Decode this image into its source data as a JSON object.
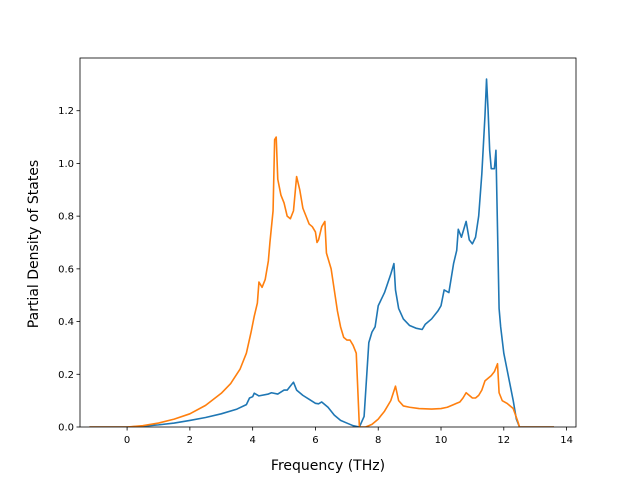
{
  "chart_data": {
    "type": "line",
    "title": "",
    "xlabel": "Frequency (THz)",
    "ylabel": "Partial Density of States",
    "xlim": [
      -1.5,
      14.3
    ],
    "ylim": [
      0.0,
      1.4
    ],
    "xticks": [
      0,
      2,
      4,
      6,
      8,
      10,
      12,
      14
    ],
    "yticks": [
      0.0,
      0.2,
      0.4,
      0.6,
      0.8,
      1.0,
      1.2
    ],
    "xtick_labels": [
      "0",
      "2",
      "4",
      "6",
      "8",
      "10",
      "12",
      "14"
    ],
    "ytick_labels": [
      "0.0",
      "0.2",
      "0.4",
      "0.6",
      "0.8",
      "1.0",
      "1.2"
    ],
    "grid": false,
    "legend": "none",
    "series": [
      {
        "color": "#1f77b4",
        "points": [
          [
            -1.2,
            0.0
          ],
          [
            0.0,
            0.0
          ],
          [
            0.5,
            0.003
          ],
          [
            1.0,
            0.008
          ],
          [
            1.5,
            0.015
          ],
          [
            2.0,
            0.025
          ],
          [
            2.5,
            0.036
          ],
          [
            3.0,
            0.05
          ],
          [
            3.5,
            0.068
          ],
          [
            3.8,
            0.085
          ],
          [
            3.9,
            0.11
          ],
          [
            4.0,
            0.115
          ],
          [
            4.05,
            0.128
          ],
          [
            4.2,
            0.118
          ],
          [
            4.5,
            0.125
          ],
          [
            4.6,
            0.13
          ],
          [
            4.8,
            0.125
          ],
          [
            5.0,
            0.14
          ],
          [
            5.1,
            0.14
          ],
          [
            5.2,
            0.155
          ],
          [
            5.3,
            0.17
          ],
          [
            5.4,
            0.14
          ],
          [
            5.6,
            0.12
          ],
          [
            5.8,
            0.105
          ],
          [
            6.0,
            0.09
          ],
          [
            6.1,
            0.088
          ],
          [
            6.2,
            0.095
          ],
          [
            6.4,
            0.075
          ],
          [
            6.6,
            0.045
          ],
          [
            6.8,
            0.025
          ],
          [
            7.0,
            0.015
          ],
          [
            7.2,
            0.005
          ],
          [
            7.4,
            0.0
          ],
          [
            7.55,
            0.04
          ],
          [
            7.7,
            0.32
          ],
          [
            7.8,
            0.36
          ],
          [
            7.9,
            0.38
          ],
          [
            8.0,
            0.46
          ],
          [
            8.2,
            0.51
          ],
          [
            8.4,
            0.58
          ],
          [
            8.5,
            0.62
          ],
          [
            8.55,
            0.52
          ],
          [
            8.65,
            0.45
          ],
          [
            8.8,
            0.41
          ],
          [
            9.0,
            0.385
          ],
          [
            9.2,
            0.375
          ],
          [
            9.4,
            0.37
          ],
          [
            9.5,
            0.39
          ],
          [
            9.7,
            0.41
          ],
          [
            9.9,
            0.44
          ],
          [
            10.0,
            0.46
          ],
          [
            10.1,
            0.52
          ],
          [
            10.25,
            0.51
          ],
          [
            10.4,
            0.62
          ],
          [
            10.5,
            0.67
          ],
          [
            10.55,
            0.75
          ],
          [
            10.65,
            0.72
          ],
          [
            10.8,
            0.78
          ],
          [
            10.9,
            0.71
          ],
          [
            11.0,
            0.695
          ],
          [
            11.1,
            0.72
          ],
          [
            11.2,
            0.8
          ],
          [
            11.3,
            0.96
          ],
          [
            11.4,
            1.18
          ],
          [
            11.45,
            1.32
          ],
          [
            11.5,
            1.2
          ],
          [
            11.55,
            1.05
          ],
          [
            11.6,
            0.98
          ],
          [
            11.7,
            0.98
          ],
          [
            11.75,
            1.05
          ],
          [
            11.8,
            0.75
          ],
          [
            11.85,
            0.45
          ],
          [
            11.9,
            0.38
          ],
          [
            12.0,
            0.28
          ],
          [
            12.1,
            0.22
          ],
          [
            12.2,
            0.16
          ],
          [
            12.3,
            0.1
          ],
          [
            12.4,
            0.03
          ],
          [
            12.5,
            0.0
          ],
          [
            13.6,
            0.0
          ]
        ]
      },
      {
        "color": "#ff7f0e",
        "points": [
          [
            -1.2,
            0.0
          ],
          [
            0.0,
            0.0
          ],
          [
            0.5,
            0.005
          ],
          [
            1.0,
            0.015
          ],
          [
            1.5,
            0.03
          ],
          [
            2.0,
            0.05
          ],
          [
            2.5,
            0.082
          ],
          [
            3.0,
            0.128
          ],
          [
            3.3,
            0.165
          ],
          [
            3.6,
            0.22
          ],
          [
            3.8,
            0.28
          ],
          [
            3.95,
            0.36
          ],
          [
            4.05,
            0.42
          ],
          [
            4.15,
            0.47
          ],
          [
            4.2,
            0.55
          ],
          [
            4.3,
            0.53
          ],
          [
            4.4,
            0.56
          ],
          [
            4.5,
            0.63
          ],
          [
            4.55,
            0.7
          ],
          [
            4.65,
            0.82
          ],
          [
            4.7,
            1.09
          ],
          [
            4.75,
            1.1
          ],
          [
            4.8,
            0.94
          ],
          [
            4.9,
            0.88
          ],
          [
            5.0,
            0.85
          ],
          [
            5.1,
            0.8
          ],
          [
            5.2,
            0.79
          ],
          [
            5.3,
            0.82
          ],
          [
            5.4,
            0.95
          ],
          [
            5.5,
            0.9
          ],
          [
            5.6,
            0.83
          ],
          [
            5.7,
            0.8
          ],
          [
            5.8,
            0.77
          ],
          [
            5.9,
            0.76
          ],
          [
            6.0,
            0.74
          ],
          [
            6.05,
            0.7
          ],
          [
            6.1,
            0.71
          ],
          [
            6.2,
            0.76
          ],
          [
            6.3,
            0.78
          ],
          [
            6.35,
            0.66
          ],
          [
            6.5,
            0.6
          ],
          [
            6.6,
            0.52
          ],
          [
            6.7,
            0.44
          ],
          [
            6.8,
            0.38
          ],
          [
            6.9,
            0.34
          ],
          [
            7.0,
            0.33
          ],
          [
            7.1,
            0.33
          ],
          [
            7.2,
            0.31
          ],
          [
            7.3,
            0.28
          ],
          [
            7.4,
            0.0
          ],
          [
            7.6,
            0.0
          ],
          [
            7.8,
            0.01
          ],
          [
            8.0,
            0.03
          ],
          [
            8.2,
            0.06
          ],
          [
            8.4,
            0.1
          ],
          [
            8.55,
            0.155
          ],
          [
            8.65,
            0.1
          ],
          [
            8.8,
            0.08
          ],
          [
            9.0,
            0.075
          ],
          [
            9.3,
            0.07
          ],
          [
            9.7,
            0.068
          ],
          [
            10.0,
            0.07
          ],
          [
            10.2,
            0.075
          ],
          [
            10.4,
            0.085
          ],
          [
            10.5,
            0.09
          ],
          [
            10.6,
            0.095
          ],
          [
            10.7,
            0.11
          ],
          [
            10.8,
            0.13
          ],
          [
            10.9,
            0.12
          ],
          [
            11.0,
            0.11
          ],
          [
            11.1,
            0.11
          ],
          [
            11.2,
            0.12
          ],
          [
            11.3,
            0.14
          ],
          [
            11.4,
            0.175
          ],
          [
            11.5,
            0.185
          ],
          [
            11.6,
            0.195
          ],
          [
            11.7,
            0.21
          ],
          [
            11.8,
            0.24
          ],
          [
            11.85,
            0.13
          ],
          [
            11.95,
            0.1
          ],
          [
            12.1,
            0.09
          ],
          [
            12.3,
            0.07
          ],
          [
            12.45,
            0.02
          ],
          [
            12.5,
            0.0
          ],
          [
            13.6,
            0.0
          ]
        ]
      }
    ]
  }
}
